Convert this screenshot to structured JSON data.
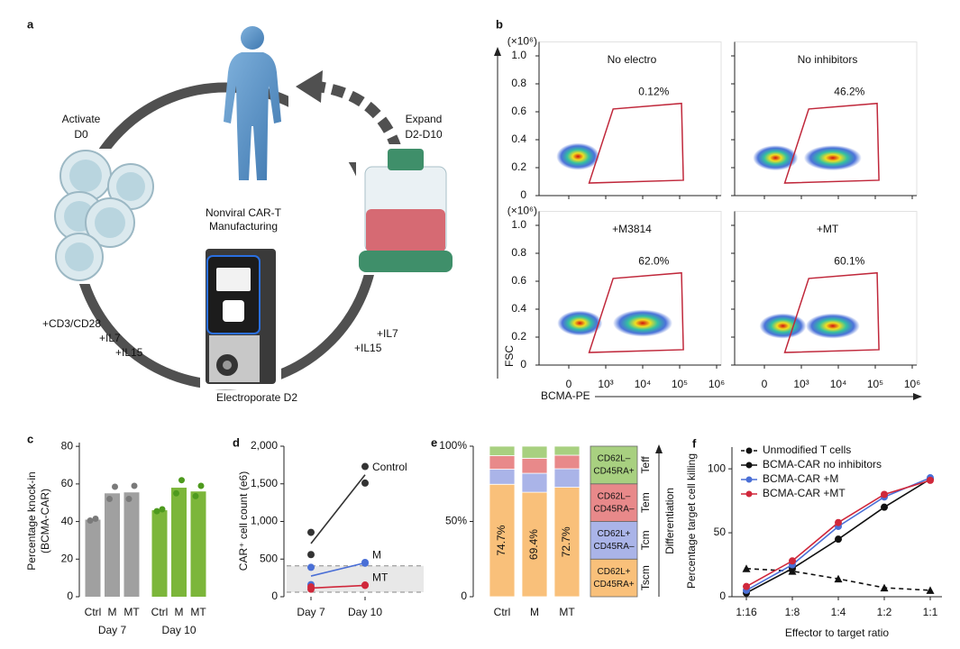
{
  "panel_a": {
    "label": "a",
    "center_title": [
      "Nonviral CAR-T",
      "Manufacturing"
    ],
    "activate": [
      "Activate",
      "D0"
    ],
    "expand": [
      "Expand",
      "D2-D10"
    ],
    "electroporate": "Electroporate D2",
    "reagents_activate": [
      "+CD3/CD28",
      "+IL7",
      "+IL15"
    ],
    "reagents_expand": [
      "+IL7",
      "+IL15"
    ]
  },
  "chart_data": [
    {
      "type": "flow",
      "label": "b",
      "xlabel": "BCMA-PE",
      "ylabel": "FSC",
      "y_unit": "(×10⁶)",
      "xscale": "symlog",
      "xlim": [
        0,
        1000000
      ],
      "xticks": [
        0,
        {
          "value": 1000,
          "label": "10³"
        },
        {
          "value": 10000,
          "label": "10⁴"
        },
        {
          "value": 100000,
          "label": "10⁵"
        },
        {
          "value": 1000000,
          "label": "10⁶"
        }
      ],
      "ylim": [
        0,
        1.1
      ],
      "yticks": [
        0,
        0.2,
        0.4,
        0.6,
        0.8,
        {
          "value": 1,
          "label": "1.0"
        }
      ],
      "titles": [
        "No electro",
        "No inhibitors",
        "+M3814",
        "+MT"
      ],
      "values": [
        0.12,
        46.2,
        62.0,
        60.1
      ],
      "value_labels": [
        "0.12%",
        "46.2%",
        "62.0%",
        "60.1%"
      ],
      "color": "#c0283b"
    },
    {
      "type": "bar",
      "label": "c",
      "ylabel": [
        "Percentage knock-in",
        "(BCMA-CAR)"
      ],
      "categories": [
        "Ctrl",
        "M",
        "MT"
      ],
      "series": [
        {
          "name": "Day 7",
          "color": "#a0a0a0",
          "point_color": "#7a7a7a",
          "values": [
            41,
            55,
            55.5
          ],
          "points": [
            [
              40.5,
              41.5
            ],
            [
              52,
              58.5
            ],
            [
              52,
              59
            ]
          ]
        },
        {
          "name": "Day 10",
          "color": "#7cb63a",
          "point_color": "#4e9a1e",
          "values": [
            46,
            58,
            56
          ],
          "points": [
            [
              45.5,
              46.5
            ],
            [
              55,
              62
            ],
            [
              53.5,
              59
            ]
          ]
        }
      ],
      "ylim": [
        0,
        82
      ],
      "yticks": [
        0,
        20,
        40,
        60,
        80
      ]
    },
    {
      "type": "line",
      "label": "d",
      "ylabel": "CAR⁺ cell count (e6)",
      "categories": [
        "Day 7",
        "Day 10"
      ],
      "series": [
        {
          "name": "Control",
          "color": "#333333",
          "values": [
            707,
            1620
          ],
          "points": [
            [
              855,
              560
            ],
            [
              1730,
              1510
            ]
          ]
        },
        {
          "name": "M",
          "color": "#4a6fd6",
          "values": [
            275,
            450
          ],
          "points": [
            [
              390,
              160
            ],
            [
              455,
              445
            ]
          ]
        },
        {
          "name": "MT",
          "color": "#d0283b",
          "values": [
            115,
            150
          ],
          "points": [
            [
              100,
              130
            ],
            [
              150,
              155
            ]
          ]
        }
      ],
      "band": [
        60,
        410
      ],
      "ylim": [
        0,
        2000
      ],
      "yticks": [
        0,
        500,
        {
          "value": 1000,
          "label": "1,000"
        },
        {
          "value": 1500,
          "label": "1,500"
        },
        {
          "value": 2000,
          "label": "2,000"
        }
      ],
      "legend": "direct"
    },
    {
      "type": "stacked_bar",
      "label": "e",
      "ylabel": "Differentiation",
      "categories": [
        "Ctrl",
        "M",
        "MT"
      ],
      "series": [
        {
          "name": "Tscm",
          "description": [
            "CD62L+",
            "CD45RA+"
          ],
          "color": "#f9c07a",
          "values": [
            74.7,
            69.4,
            72.7
          ],
          "value_labels": [
            "74.7%",
            "69.4%",
            "72.7%"
          ]
        },
        {
          "name": "Tcm",
          "description": [
            "CD62L+",
            "CD45RA–"
          ],
          "color": "#aab4e8",
          "values": [
            10,
            12.6,
            12.3
          ]
        },
        {
          "name": "Tem",
          "description": [
            "CD62L–",
            "CD45RA–"
          ],
          "color": "#e8898a",
          "values": [
            9,
            10,
            9
          ]
        },
        {
          "name": "Teff",
          "description": [
            "CD62L–",
            "CD45RA+"
          ],
          "color": "#a8d080",
          "values": [
            6.3,
            8,
            6
          ]
        }
      ],
      "ylim": [
        0,
        100
      ],
      "yticks": [
        0,
        {
          "value": 50,
          "label": "50%"
        },
        {
          "value": 100,
          "label": "100%"
        }
      ]
    },
    {
      "type": "line",
      "label": "f",
      "xlabel": "Effector to target ratio",
      "ylabel": "Percentage target cell killing",
      "categories": [
        "1:16",
        "1:8",
        "1:4",
        "1:2",
        "1:1"
      ],
      "series": [
        {
          "name": "Unmodified T cells",
          "color": "#111111",
          "dash": true,
          "marker": "triangle",
          "values": [
            22,
            20,
            14,
            7,
            5
          ]
        },
        {
          "name": "BCMA-CAR no inhibitors",
          "color": "#111111",
          "marker": "circle",
          "values": [
            3,
            22,
            45,
            70,
            92
          ]
        },
        {
          "name": "BCMA-CAR +M",
          "color": "#4a6fd6",
          "marker": "circle",
          "values": [
            5,
            25,
            55,
            78,
            93
          ]
        },
        {
          "name": "BCMA-CAR +MT",
          "color": "#d0283b",
          "marker": "circle",
          "values": [
            8,
            28,
            58,
            80,
            91
          ]
        }
      ],
      "ylim": [
        0,
        117
      ],
      "yticks": [
        0,
        50,
        100
      ],
      "legend": "upper left"
    }
  ]
}
